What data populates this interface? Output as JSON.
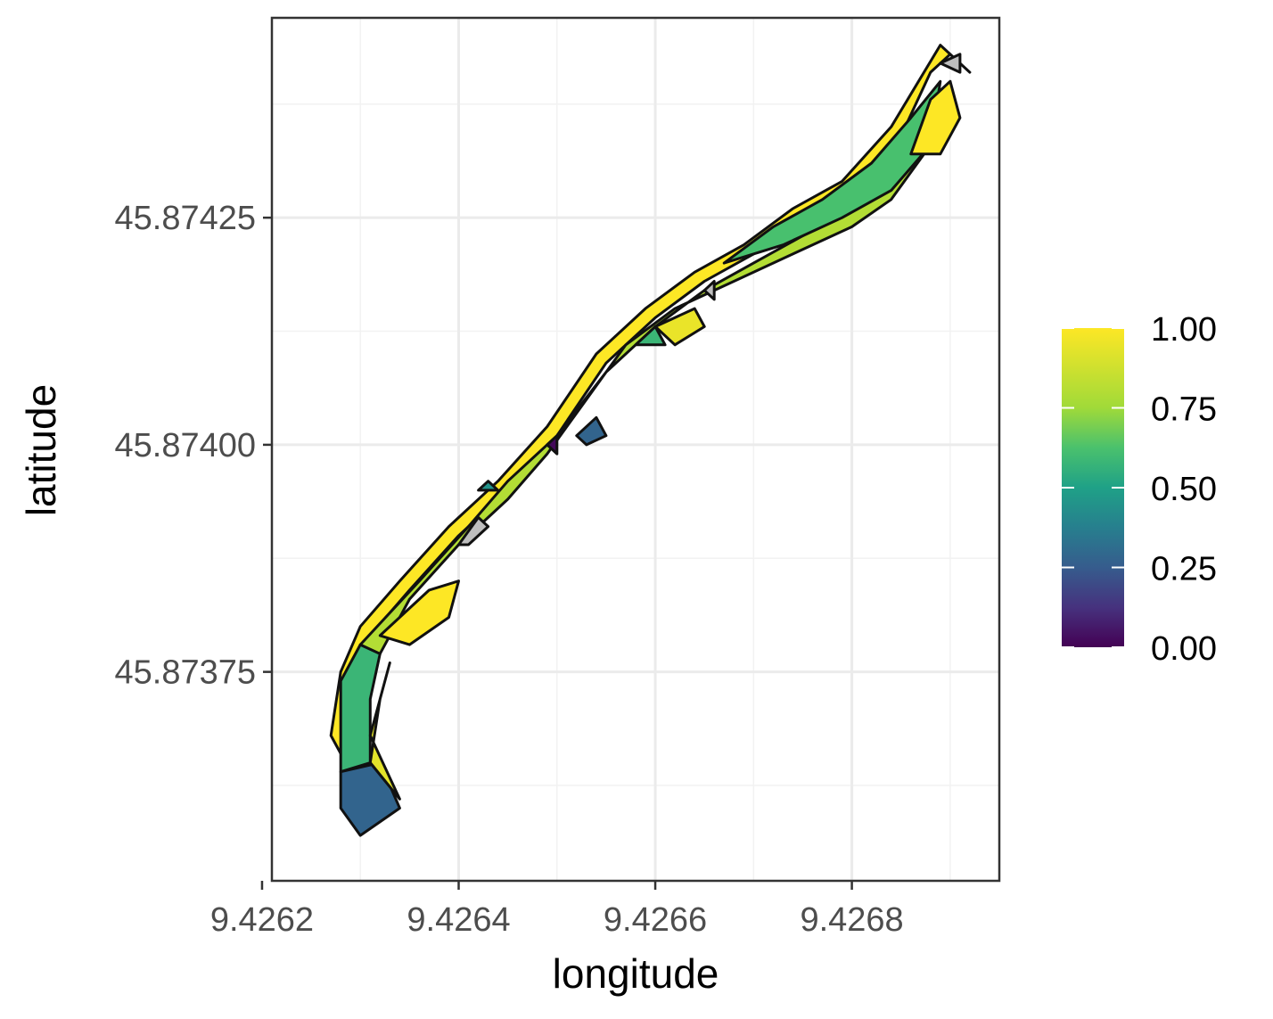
{
  "chart_data": {
    "type": "map",
    "xlabel": "longitude",
    "ylabel": "latitude",
    "xlim": [
      9.42621,
      9.42695
    ],
    "ylim": [
      45.87352,
      45.87447
    ],
    "x_ticks": [
      {
        "value": 9.4262,
        "label": "9.4262"
      },
      {
        "value": 9.4264,
        "label": "9.4264"
      },
      {
        "value": 9.4266,
        "label": "9.4266"
      },
      {
        "value": 9.4268,
        "label": "9.4268"
      }
    ],
    "y_ticks": [
      {
        "value": 45.87375,
        "label": "45.87375"
      },
      {
        "value": 45.874,
        "label": "45.87400"
      },
      {
        "value": 45.87425,
        "label": "45.87425"
      }
    ],
    "grid": true,
    "legend": {
      "position": "right",
      "type": "colorbar",
      "palette": "viridis",
      "limits": [
        0,
        1
      ],
      "breaks": [
        {
          "value": 0.0,
          "label": "0.00"
        },
        {
          "value": 0.25,
          "label": "0.25"
        },
        {
          "value": 0.5,
          "label": "0.50"
        },
        {
          "value": 0.75,
          "label": "0.75"
        },
        {
          "value": 1.0,
          "label": "1.00"
        }
      ]
    },
    "na_color": "#bebebe",
    "polygons": [
      {
        "value": 1.0,
        "coords": [
          [
            9.42628,
            45.87366
          ],
          [
            9.42629,
            45.87374
          ],
          [
            9.42631,
            45.87379
          ],
          [
            9.42635,
            45.87384
          ],
          [
            9.4264,
            45.8739
          ],
          [
            9.42645,
            45.87395
          ],
          [
            9.4265,
            45.87401
          ],
          [
            9.42655,
            45.87409
          ],
          [
            9.4266,
            45.87414
          ],
          [
            9.42665,
            45.87418
          ],
          [
            9.4267,
            45.87421
          ],
          [
            9.42675,
            45.87425
          ],
          [
            9.4268,
            45.87428
          ],
          [
            9.42685,
            45.87434
          ],
          [
            9.42688,
            45.87441
          ],
          [
            9.4269,
            45.87443
          ],
          [
            9.42692,
            45.87441
          ],
          [
            9.42689,
            45.87444
          ],
          [
            9.42684,
            45.87435
          ],
          [
            9.42679,
            45.87429
          ],
          [
            9.42674,
            45.87426
          ],
          [
            9.42669,
            45.87422
          ],
          [
            9.42664,
            45.87419
          ],
          [
            9.42659,
            45.87415
          ],
          [
            9.42654,
            45.8741
          ],
          [
            9.42649,
            45.87402
          ],
          [
            9.42644,
            45.87396
          ],
          [
            9.42639,
            45.87391
          ],
          [
            9.42634,
            45.87385
          ],
          [
            9.4263,
            45.8738
          ],
          [
            9.42628,
            45.87375
          ],
          [
            9.42627,
            45.87368
          ]
        ]
      },
      {
        "value": 0.58,
        "coords": [
          [
            9.42628,
            45.87366
          ],
          [
            9.42628,
            45.87374
          ],
          [
            9.4263,
            45.87378
          ],
          [
            9.42632,
            45.87377
          ],
          [
            9.42631,
            45.87372
          ],
          [
            9.42631,
            45.87365
          ],
          [
            9.42628,
            45.87364
          ]
        ]
      },
      {
        "value": 0.28,
        "coords": [
          [
            9.42628,
            45.87364
          ],
          [
            9.42632,
            45.87365
          ],
          [
            9.42634,
            45.8736
          ],
          [
            9.4263,
            45.87357
          ],
          [
            9.42628,
            45.8736
          ]
        ]
      },
      {
        "value": 0.93,
        "coords": [
          [
            9.42631,
            45.87365
          ],
          [
            9.42632,
            45.87372
          ],
          [
            9.42633,
            45.87376
          ],
          [
            9.42631,
            45.87368
          ],
          [
            9.42634,
            45.87361
          ]
        ]
      },
      {
        "value": 0.8,
        "coords": [
          [
            9.4263,
            45.87378
          ],
          [
            9.42636,
            45.87385
          ],
          [
            9.42641,
            45.87391
          ],
          [
            9.42645,
            45.87396
          ],
          [
            9.4265,
            45.87401
          ],
          [
            9.42655,
            45.87408
          ],
          [
            9.4266,
            45.87413
          ],
          [
            9.42665,
            45.87417
          ],
          [
            9.4267,
            45.8742
          ],
          [
            9.42675,
            45.87423
          ],
          [
            9.4268,
            45.87427
          ],
          [
            9.42684,
            45.87432
          ],
          [
            9.42687,
            45.87437
          ],
          [
            9.4269,
            45.8744
          ],
          [
            9.42688,
            45.87433
          ],
          [
            9.42684,
            45.87427
          ],
          [
            9.4268,
            45.87424
          ],
          [
            9.42674,
            45.87421
          ],
          [
            9.42668,
            45.87418
          ],
          [
            9.42662,
            45.87415
          ],
          [
            9.42657,
            45.87411
          ],
          [
            9.42653,
            45.87405
          ],
          [
            9.42649,
            45.87399
          ],
          [
            9.42645,
            45.87394
          ],
          [
            9.4264,
            45.87389
          ],
          [
            9.42635,
            45.87383
          ],
          [
            9.42632,
            45.87377
          ]
        ]
      },
      {
        "value": 0.62,
        "coords": [
          [
            9.42667,
            45.8742
          ],
          [
            9.42672,
            45.87424
          ],
          [
            9.42677,
            45.87427
          ],
          [
            9.42682,
            45.87431
          ],
          [
            9.42686,
            45.87436
          ],
          [
            9.42689,
            45.8744
          ],
          [
            9.42688,
            45.87433
          ],
          [
            9.42684,
            45.87428
          ],
          [
            9.42679,
            45.87425
          ],
          [
            9.42673,
            45.87422
          ]
        ]
      },
      {
        "value": 1.0,
        "coords": [
          [
            9.42686,
            45.87432
          ],
          [
            9.42688,
            45.87438
          ],
          [
            9.4269,
            45.8744
          ],
          [
            9.42691,
            45.87436
          ],
          [
            9.42689,
            45.87432
          ]
        ]
      },
      {
        "value": 1.0,
        "coords": [
          [
            9.42632,
            45.87379
          ],
          [
            9.42637,
            45.87384
          ],
          [
            9.4264,
            45.87385
          ],
          [
            9.42639,
            45.87381
          ],
          [
            9.42635,
            45.87378
          ]
        ]
      },
      {
        "value": 0.95,
        "coords": [
          [
            9.4266,
            45.87413
          ],
          [
            9.42664,
            45.87415
          ],
          [
            9.42665,
            45.87413
          ],
          [
            9.42662,
            45.87411
          ]
        ]
      },
      {
        "value": 0.28,
        "coords": [
          [
            9.42652,
            45.87401
          ],
          [
            9.42654,
            45.87403
          ],
          [
            9.42655,
            45.87401
          ],
          [
            9.42653,
            45.874
          ]
        ]
      },
      {
        "value": 0.02,
        "coords": [
          [
            9.42649,
            45.874
          ],
          [
            9.4265,
            45.87401
          ],
          [
            9.4265,
            45.87399
          ]
        ]
      },
      {
        "value": 0.45,
        "coords": [
          [
            9.42642,
            45.87395
          ],
          [
            9.42643,
            45.87396
          ],
          [
            9.42644,
            45.87395
          ]
        ]
      },
      {
        "value": 0.58,
        "coords": [
          [
            9.42658,
            45.87411
          ],
          [
            9.4266,
            45.87413
          ],
          [
            9.42661,
            45.87411
          ]
        ]
      },
      {
        "value": null,
        "coords": [
          [
            9.4264,
            45.87389
          ],
          [
            9.42642,
            45.87392
          ],
          [
            9.42643,
            45.87391
          ],
          [
            9.42641,
            45.87389
          ]
        ]
      },
      {
        "value": null,
        "coords": [
          [
            9.42665,
            45.87417
          ],
          [
            9.42666,
            45.87418
          ],
          [
            9.42666,
            45.87416
          ]
        ]
      },
      {
        "value": null,
        "coords": [
          [
            9.42689,
            45.87442
          ],
          [
            9.42691,
            45.87443
          ],
          [
            9.42691,
            45.87441
          ]
        ]
      }
    ]
  }
}
